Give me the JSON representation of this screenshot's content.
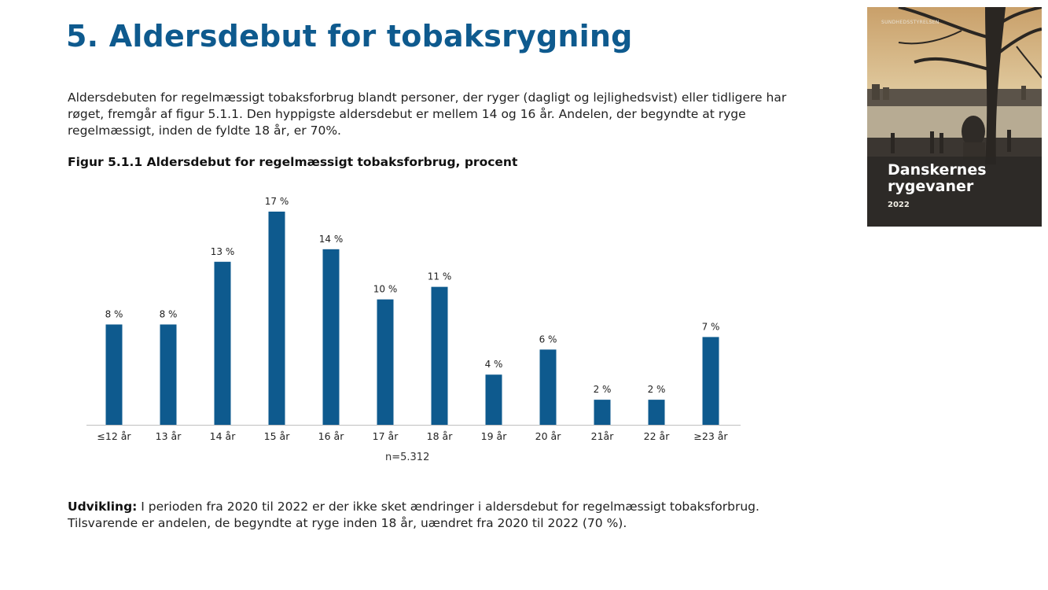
{
  "page": {
    "title": "5. Aldersdebut for tobaksrygning",
    "intro": "Aldersdebuten for regelmæssigt tobaksforbrug blandt personer, der ryger (dagligt og lejlighedsvist) eller tidligere har røget, fremgår af figur 5.1.1. Den hyppigste aldersdebut er mellem 14 og 16 år. Andelen, der begyndte at ryge regelmæssigt, inden de fyldte 18 år, er 70%.",
    "figure_title": "Figur 5.1.1 Aldersdebut for regelmæssigt tobaksforbrug, procent",
    "n_label": "n=5.312",
    "development_label": "Udvikling:",
    "development_text": " I perioden fra 2020 til 2022 er der ikke sket ændringer i aldersdebut for regelmæssigt tobaksforbrug. Tilsvarende er andelen, de begyndte at ryge inden 18 år, uændret fra 2020 til 2022 (70 %)."
  },
  "cover": {
    "brand": "SUNDHEDSSTYRELSEN",
    "title_line1": "Danskernes",
    "title_line2": "rygevaner",
    "year": "2022"
  },
  "colors": {
    "bar": "#0e5a8e",
    "title": "#0e5a8e"
  },
  "chart_data": {
    "type": "bar",
    "categories": [
      "≤12 år",
      "13 år",
      "14 år",
      "15 år",
      "16 år",
      "17 år",
      "18 år",
      "19 år",
      "20 år",
      "21år",
      "22 år",
      "≥23 år"
    ],
    "values": [
      8,
      8,
      13,
      17,
      14,
      10,
      11,
      4,
      6,
      2,
      2,
      7
    ],
    "data_labels": [
      "8 %",
      "8 %",
      "13 %",
      "17 %",
      "14 %",
      "10 %",
      "11 %",
      "4 %",
      "6 %",
      "2 %",
      "2 %",
      "7 %"
    ],
    "ylim": [
      0,
      17
    ],
    "grid": false,
    "legend": "none"
  }
}
